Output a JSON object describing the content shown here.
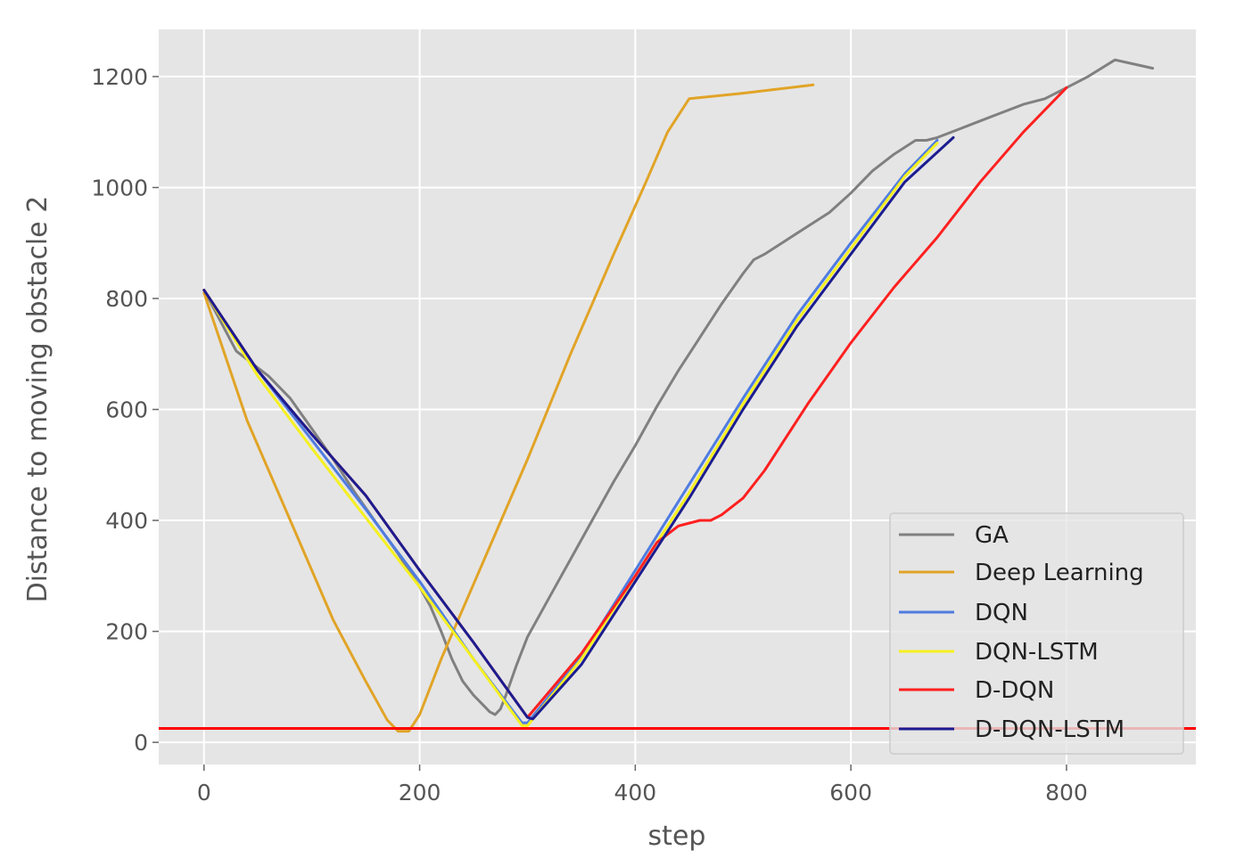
{
  "chart_data": {
    "type": "line",
    "title": "",
    "xlabel": "step",
    "ylabel": "Distance to moving obstacle 2",
    "xlim": [
      -42,
      920
    ],
    "ylim": [
      -40,
      1285
    ],
    "xticks": [
      0,
      200,
      400,
      600,
      800
    ],
    "yticks": [
      0,
      200,
      400,
      600,
      800,
      1000,
      1200
    ],
    "grid": true,
    "style": "ggplot",
    "background_color": "#e5e5e5",
    "grid_color": "#ffffff",
    "legend_position": "lower-right",
    "series": [
      {
        "name": "GA",
        "color": "#808080",
        "x": [
          0,
          30,
          60,
          80,
          100,
          120,
          140,
          160,
          180,
          200,
          210,
          220,
          230,
          240,
          250,
          260,
          265,
          270,
          275,
          280,
          290,
          300,
          320,
          340,
          360,
          380,
          400,
          420,
          440,
          460,
          480,
          500,
          510,
          520,
          540,
          560,
          580,
          600,
          620,
          640,
          660,
          670,
          680,
          700,
          720,
          740,
          760,
          780,
          800,
          820,
          845,
          880
        ],
        "y": [
          815,
          705,
          660,
          620,
          565,
          510,
          450,
          395,
          340,
          280,
          245,
          200,
          150,
          110,
          85,
          65,
          55,
          50,
          60,
          85,
          140,
          190,
          260,
          330,
          400,
          470,
          535,
          605,
          670,
          730,
          790,
          845,
          870,
          880,
          905,
          930,
          955,
          990,
          1030,
          1060,
          1085,
          1085,
          1090,
          1105,
          1120,
          1135,
          1150,
          1160,
          1180,
          1200,
          1230,
          1215
        ]
      },
      {
        "name": "Deep Learning",
        "color": "#e1a427",
        "x": [
          0,
          40,
          80,
          120,
          150,
          170,
          180,
          190,
          200,
          220,
          260,
          300,
          340,
          380,
          410,
          430,
          450,
          500,
          565
        ],
        "y": [
          810,
          580,
          400,
          220,
          110,
          40,
          20,
          20,
          50,
          150,
          330,
          510,
          700,
          880,
          1010,
          1100,
          1160,
          1170,
          1185
        ]
      },
      {
        "name": "DQN",
        "color": "#4f7ce0",
        "x": [
          0,
          50,
          100,
          150,
          200,
          250,
          295,
          300,
          350,
          400,
          450,
          500,
          550,
          600,
          650,
          680
        ],
        "y": [
          815,
          670,
          545,
          420,
          290,
          150,
          35,
          35,
          155,
          310,
          465,
          620,
          770,
          900,
          1025,
          1085
        ]
      },
      {
        "name": "DQN-LSTM",
        "color": "#f5f020",
        "x": [
          0,
          50,
          100,
          150,
          200,
          250,
          295,
          300,
          350,
          400,
          450,
          500,
          550,
          600,
          650,
          680
        ],
        "y": [
          815,
          660,
          530,
          405,
          280,
          150,
          30,
          30,
          150,
          300,
          450,
          610,
          760,
          890,
          1020,
          1080
        ]
      },
      {
        "name": "D-DQN",
        "color": "#ff2020",
        "x": [
          0,
          50,
          100,
          150,
          200,
          250,
          300,
          350,
          400,
          420,
          440,
          460,
          470,
          480,
          500,
          520,
          560,
          600,
          640,
          680,
          720,
          760,
          800
        ],
        "y": [
          815,
          670,
          555,
          445,
          310,
          180,
          45,
          160,
          300,
          360,
          390,
          400,
          400,
          410,
          440,
          490,
          610,
          720,
          820,
          910,
          1010,
          1100,
          1180
        ]
      },
      {
        "name": "D-DQN-LSTM",
        "color": "#1c1c90",
        "x": [
          0,
          50,
          100,
          150,
          200,
          250,
          300,
          305,
          350,
          400,
          450,
          500,
          550,
          600,
          650,
          695
        ],
        "y": [
          815,
          670,
          555,
          445,
          310,
          180,
          45,
          42,
          140,
          290,
          440,
          600,
          750,
          880,
          1010,
          1090
        ]
      }
    ],
    "reference_line": {
      "y": 25,
      "color": "#ff0000"
    }
  }
}
